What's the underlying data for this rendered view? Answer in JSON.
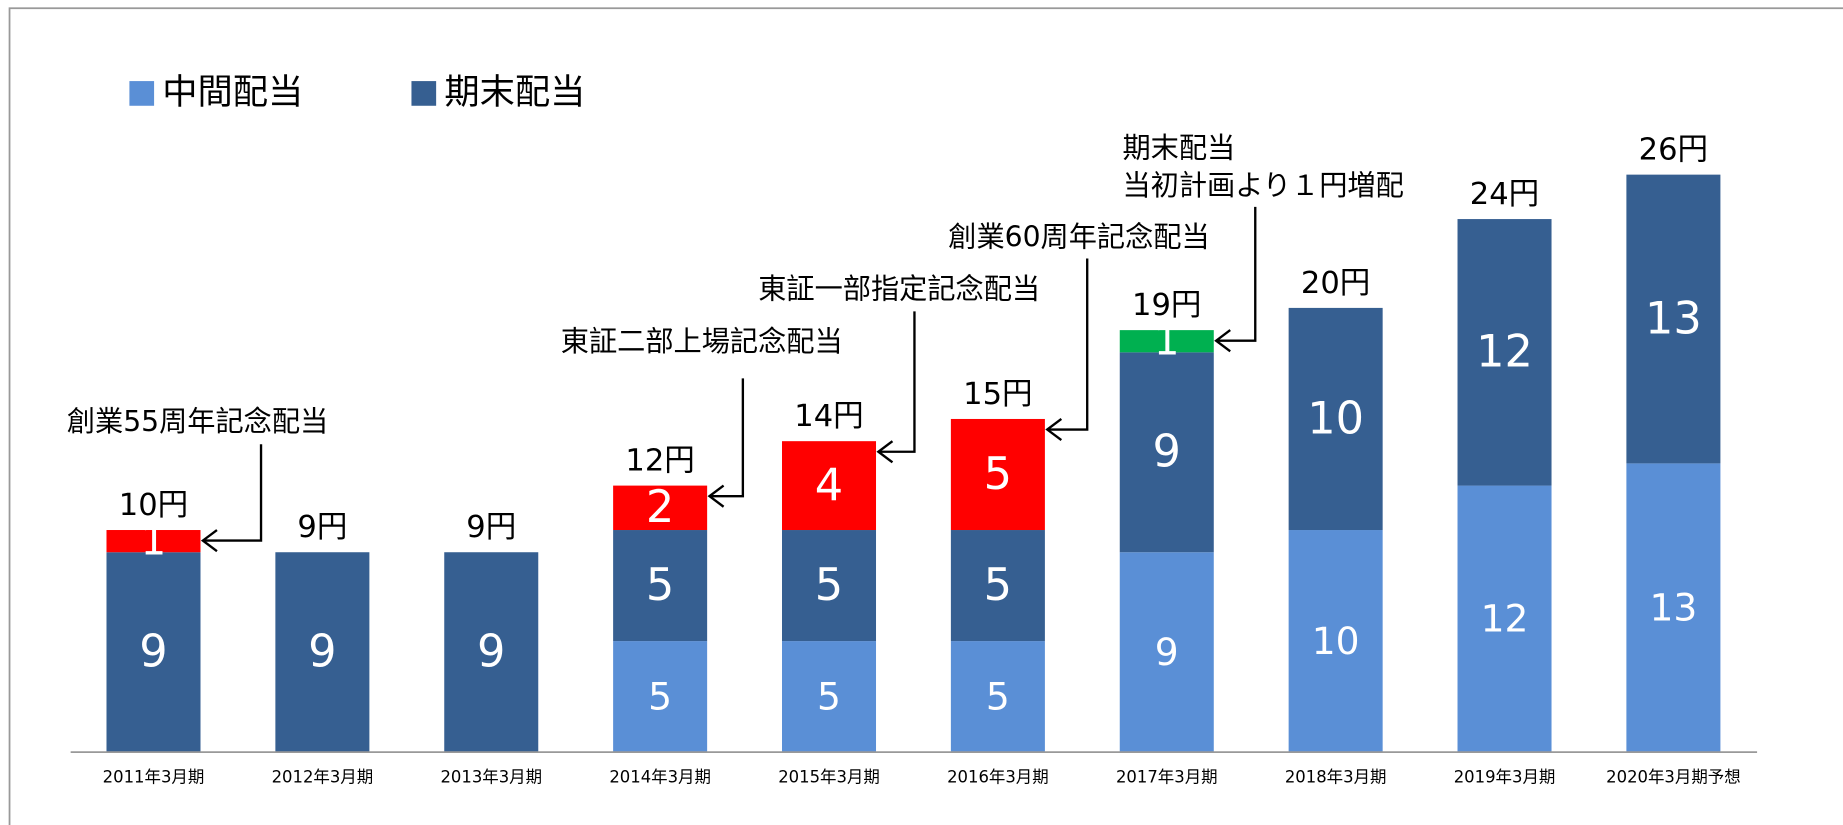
{
  "chart_data": {
    "type": "stacked_bar",
    "categories": [
      "2011年3月期",
      "2012年3月期",
      "2013年3月期",
      "2014年3月期",
      "2015年3月期",
      "2016年3月期",
      "2017年3月期",
      "2018年3月期",
      "2019年3月期",
      "2020年3月期予想"
    ],
    "series": [
      {
        "name": "中間配当",
        "color": "#5a8fd6",
        "values": [
          null,
          null,
          null,
          5,
          5,
          5,
          9,
          10,
          12,
          13
        ]
      },
      {
        "name": "期末配当",
        "color": "#365f91",
        "values": [
          9,
          9,
          9,
          5,
          5,
          5,
          9,
          10,
          12,
          13
        ]
      },
      {
        "color": "#ff0000",
        "values": [
          1,
          null,
          null,
          2,
          4,
          5,
          null,
          null,
          null,
          null
        ]
      },
      {
        "color": "#00b050",
        "values": [
          null,
          null,
          null,
          null,
          null,
          null,
          1,
          null,
          null,
          null
        ]
      }
    ],
    "total_labels": [
      "10円",
      "9円",
      "9円",
      "12円",
      "14円",
      "15円",
      "19円",
      "20円",
      "24円",
      "26円"
    ],
    "annotations": [
      {
        "text": [
          "創業55周年記念配当"
        ]
      },
      {
        "text": [
          "東証二部上場記念配当"
        ]
      },
      {
        "text": [
          "東証一部指定記念配当"
        ]
      },
      {
        "text": [
          "創業60周年記念配当"
        ]
      },
      {
        "text": [
          "期末配当",
          "当初計画より１円増配"
        ]
      }
    ],
    "ylim": [
      0,
      28
    ],
    "legend": "top-left"
  }
}
